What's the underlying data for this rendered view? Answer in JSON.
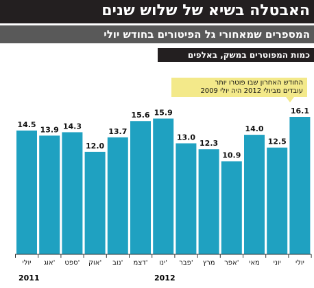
{
  "header": {
    "title": "האבטלה בשיא של שלוש שנים",
    "subtitle": "המספרים שמאחורי גל הפיטורים בחודש יולי",
    "measure": "כמות המפוטרים במשק, באלפים"
  },
  "callout": {
    "line1": "החודש האחרון שבו פוטרו יותר",
    "line2": "עובדים מביולי 2012 היה יולי 2009"
  },
  "colors": {
    "bar": "#1fa1c1",
    "title_bg": "#231f20",
    "subtitle_bg": "#595959",
    "callout_bg": "#f3e98a"
  },
  "chart_data": {
    "type": "bar",
    "categories": [
      "יולי",
      "אוג'",
      "ספט'",
      "אוק'",
      "נוב'",
      "דצמ'",
      "ינו'",
      "פבר'",
      "מרץ",
      "אפר'",
      "מאי",
      "יוני",
      "יולי"
    ],
    "years": [
      "2011",
      "2012"
    ],
    "values": [
      14.5,
      13.9,
      14.3,
      12.0,
      13.7,
      15.6,
      15.9,
      13.0,
      12.3,
      10.9,
      14.0,
      12.5,
      16.1
    ],
    "value_labels": [
      "14.5",
      "13.9",
      "14.3",
      "12.0",
      "13.7",
      "15.6",
      "15.9",
      "13.0",
      "12.3",
      "10.9",
      "14.0",
      "12.5",
      "16.1"
    ],
    "title": "האבטלה בשיא של שלוש שנים",
    "ylabel": "כמות המפוטרים במשק, באלפים",
    "ylim": [
      0,
      16.1
    ],
    "grid": false
  }
}
